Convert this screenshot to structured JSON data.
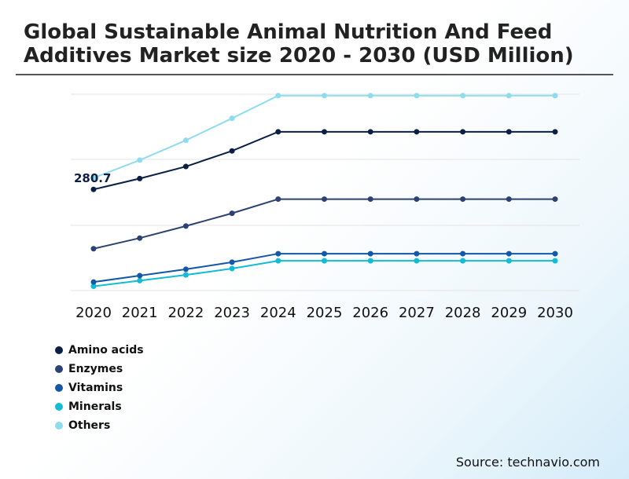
{
  "chart_data": {
    "type": "line",
    "title": "Global Sustainable Animal Nutrition And Feed Additives Market size 2020 - 2030 (USD Million)",
    "categories": [
      "2020",
      "2021",
      "2022",
      "2023",
      "2024",
      "2025",
      "2026",
      "2027",
      "2028",
      "2029",
      "2030"
    ],
    "series": [
      {
        "name": "Amino acids",
        "color": "#0b1f45",
        "values": [
          280.7,
          296,
          313,
          335,
          362,
          362,
          362,
          362,
          362,
          362,
          362
        ]
      },
      {
        "name": "Enzymes",
        "color": "#2c4272",
        "values": [
          197,
          212,
          229,
          247,
          267,
          267,
          267,
          267,
          267,
          267,
          267
        ]
      },
      {
        "name": "Vitamins",
        "color": "#1357a6",
        "values": [
          150,
          159,
          168,
          178,
          190,
          190,
          190,
          190,
          190,
          190,
          190
        ]
      },
      {
        "name": "Minerals",
        "color": "#12bcd4",
        "values": [
          144,
          152,
          160,
          169,
          180,
          180,
          180,
          180,
          180,
          180,
          180
        ]
      },
      {
        "name": "Others",
        "color": "#8fdcef",
        "values": [
          297,
          322,
          350,
          381,
          413,
          413,
          413,
          413,
          413,
          413,
          413
        ]
      }
    ],
    "annotations": [
      {
        "series": 0,
        "index": 0,
        "text": "280.7"
      }
    ],
    "ylim": [
      138,
      415
    ],
    "xlabel": "",
    "ylabel": "",
    "grid": true,
    "legend_position": "bottom-left"
  },
  "source": "Source: technavio.com"
}
